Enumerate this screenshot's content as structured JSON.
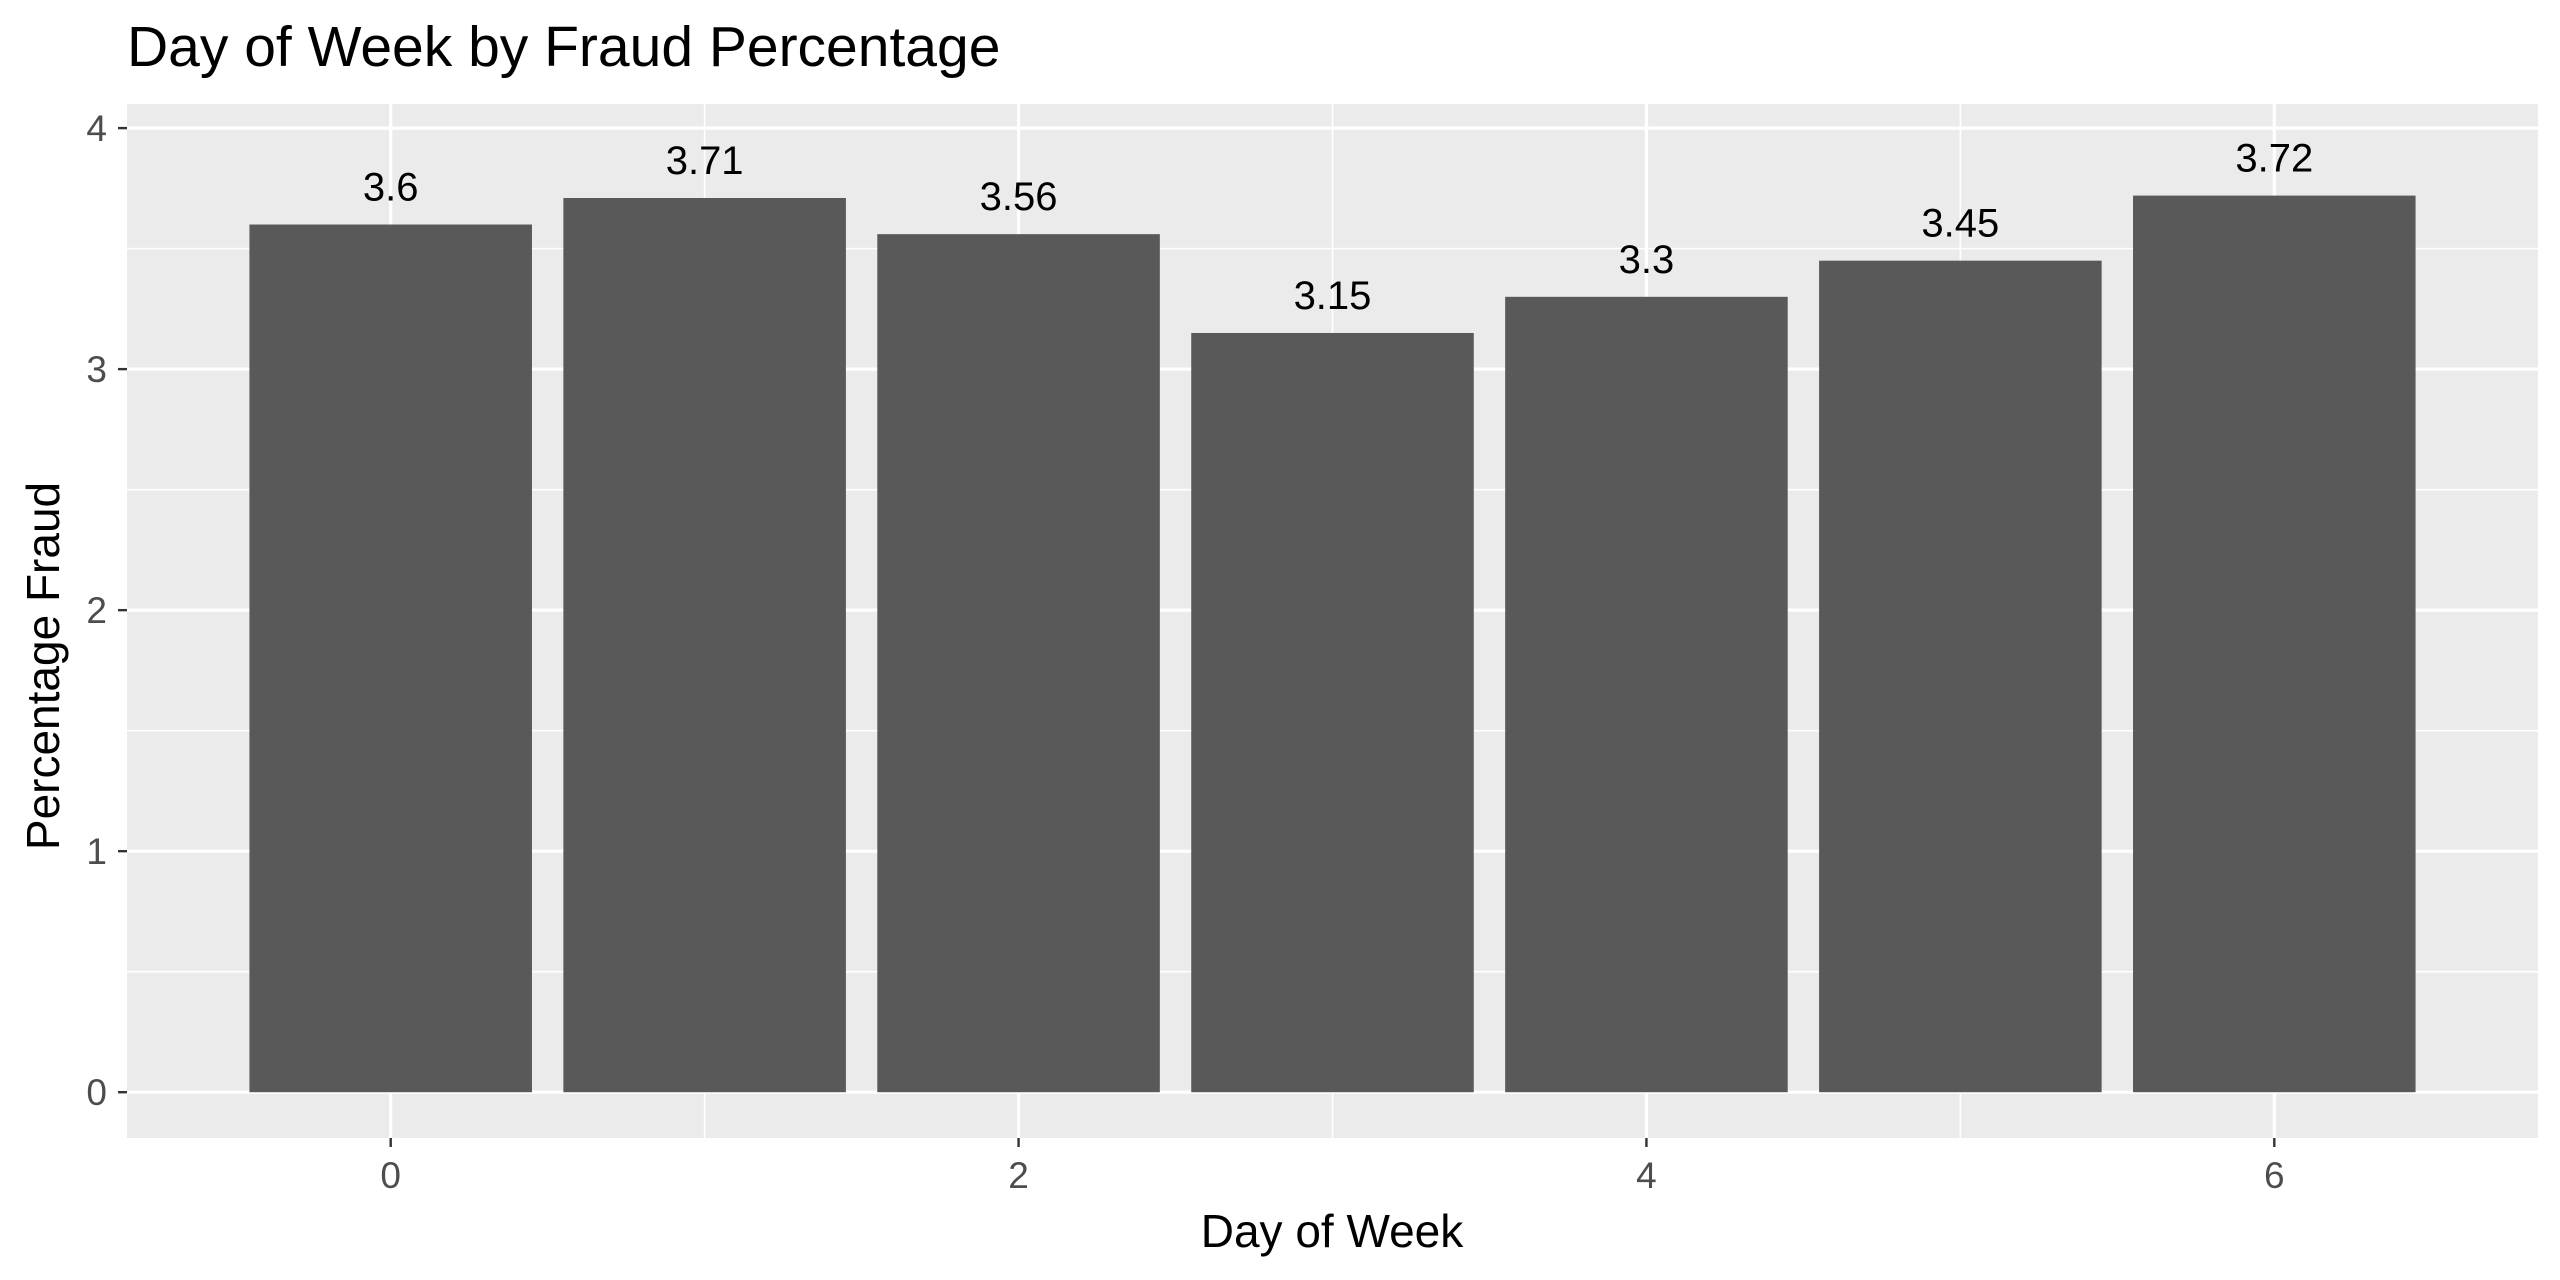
{
  "chart_data": {
    "type": "bar",
    "title": "Day of Week by Fraud Percentage",
    "xlabel": "Day of Week",
    "ylabel": "Percentage Fraud",
    "x": [
      0,
      1,
      2,
      3,
      4,
      5,
      6
    ],
    "values": [
      3.6,
      3.71,
      3.56,
      3.15,
      3.3,
      3.45,
      3.72
    ],
    "data_labels": [
      "3.6",
      "3.71",
      "3.56",
      "3.15",
      "3.3",
      "3.45",
      "3.72"
    ],
    "x_ticks": [
      0,
      2,
      4,
      6
    ],
    "x_tick_labels": [
      "0",
      "2",
      "4",
      "6"
    ],
    "y_ticks": [
      0,
      1,
      2,
      3,
      4
    ],
    "y_tick_labels": [
      "0",
      "1",
      "2",
      "3",
      "4"
    ],
    "xlim": [
      -0.84,
      6.84
    ],
    "ylim": [
      -0.19,
      4.1
    ],
    "grid": true,
    "legend": "none",
    "colors": {
      "bar": "#595959",
      "panel_background": "#ebebeb",
      "grid": "#ffffff",
      "tick_mark": "#333333",
      "tick_text": "#4d4d4d",
      "text": "#000000"
    }
  }
}
